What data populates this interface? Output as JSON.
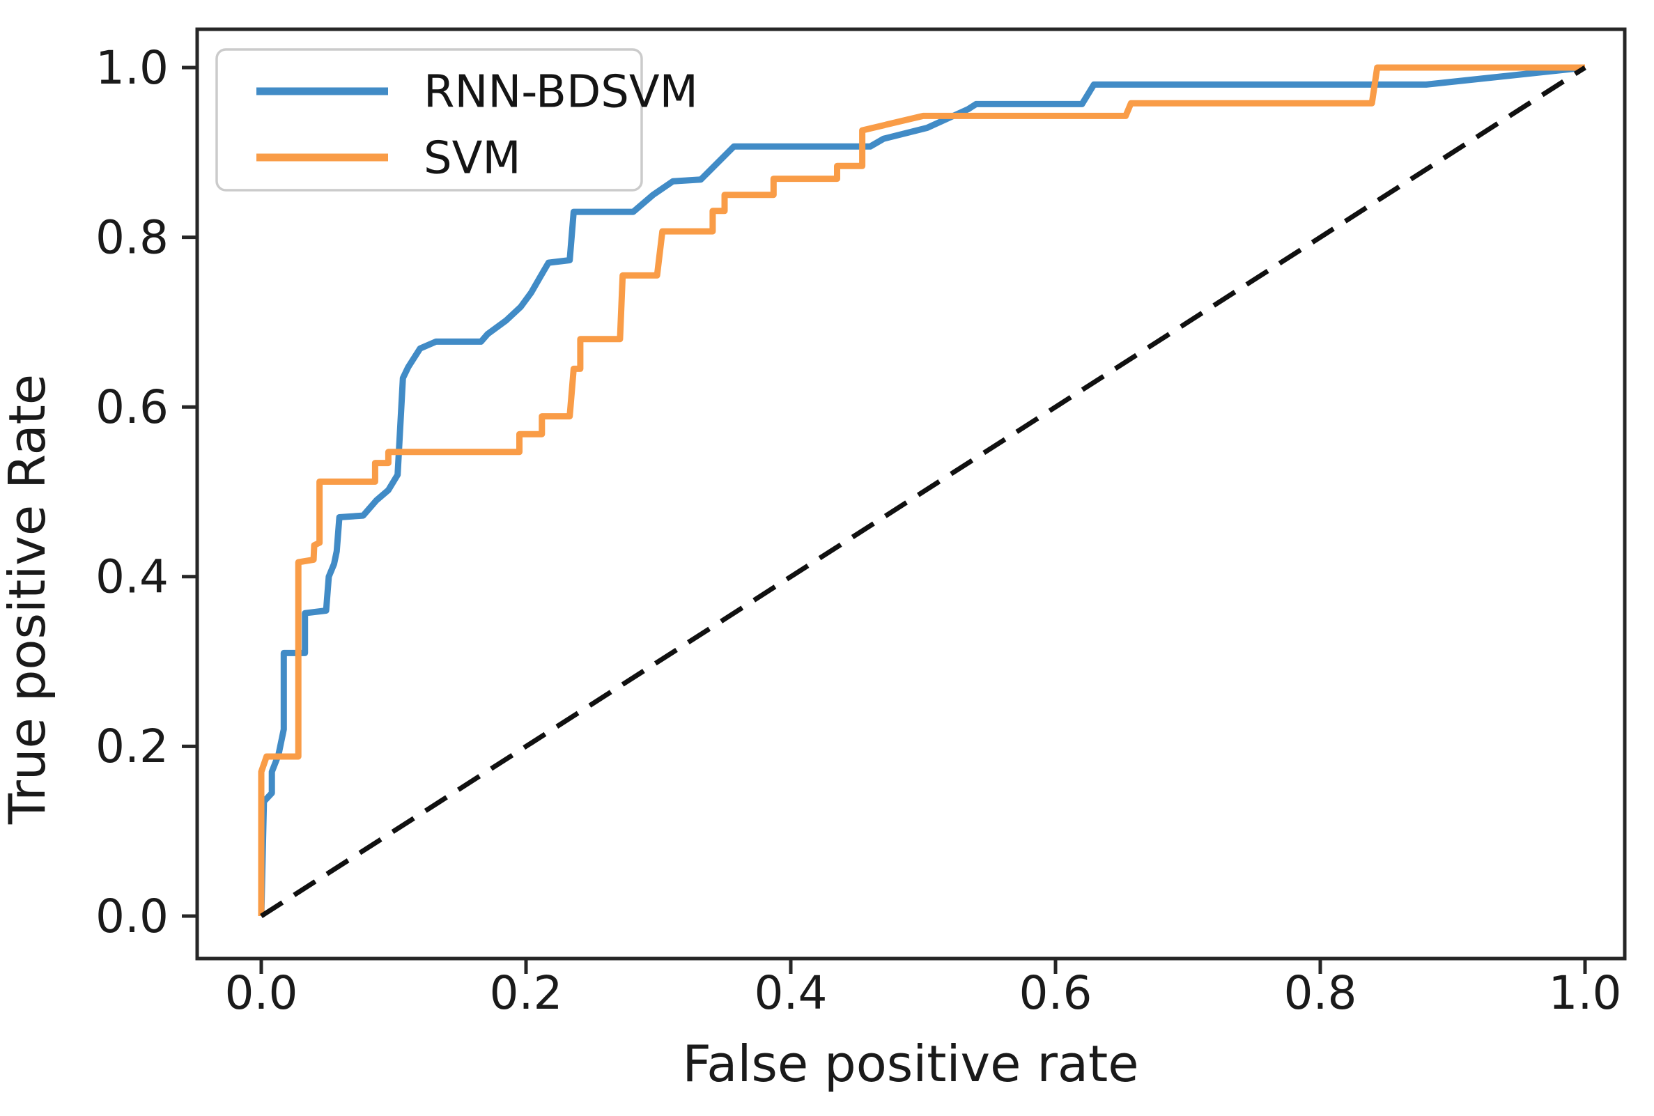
{
  "figure": {
    "background": "#ffffff"
  },
  "legend": {
    "items": [
      {
        "label": "RNN-BDSVM",
        "color": "#418bc6"
      },
      {
        "label": "SVM",
        "color": "#f99c47"
      }
    ]
  },
  "axes": {
    "x_label": "False positive rate",
    "y_label": "True positive Rate",
    "x_ticks": [
      {
        "value": 0.0,
        "label": "0.0"
      },
      {
        "value": 0.2,
        "label": "0.2"
      },
      {
        "value": 0.4,
        "label": "0.4"
      },
      {
        "value": 0.6,
        "label": "0.6"
      },
      {
        "value": 0.8,
        "label": "0.8"
      },
      {
        "value": 1.0,
        "label": "1.0"
      }
    ],
    "y_ticks": [
      {
        "value": 0.0,
        "label": "0.0"
      },
      {
        "value": 0.2,
        "label": "0.2"
      },
      {
        "value": 0.4,
        "label": "0.4"
      },
      {
        "value": 0.6,
        "label": "0.6"
      },
      {
        "value": 0.8,
        "label": "0.8"
      },
      {
        "value": 1.0,
        "label": "1.0"
      }
    ]
  },
  "chart_data": {
    "type": "line",
    "title": "",
    "xlabel": "False positive rate",
    "ylabel": "True positive Rate",
    "xlim": [
      0,
      1
    ],
    "ylim": [
      0,
      1
    ],
    "grid": false,
    "legend_position": "upper left",
    "series": [
      {
        "name": "RNN-BDSVM",
        "color": "#418bc6",
        "style": "solid",
        "points": [
          [
            0,
            0
          ],
          [
            0.002,
            0.135
          ],
          [
            0.008,
            0.145
          ],
          [
            0.008,
            0.17
          ],
          [
            0.013,
            0.19
          ],
          [
            0.017,
            0.22
          ],
          [
            0.017,
            0.31
          ],
          [
            0.033,
            0.31
          ],
          [
            0.033,
            0.357
          ],
          [
            0.049,
            0.36
          ],
          [
            0.051,
            0.4
          ],
          [
            0.055,
            0.415
          ],
          [
            0.057,
            0.43
          ],
          [
            0.059,
            0.47
          ],
          [
            0.077,
            0.472
          ],
          [
            0.087,
            0.49
          ],
          [
            0.096,
            0.502
          ],
          [
            0.103,
            0.52
          ],
          [
            0.107,
            0.634
          ],
          [
            0.111,
            0.647
          ],
          [
            0.12,
            0.669
          ],
          [
            0.132,
            0.677
          ],
          [
            0.166,
            0.677
          ],
          [
            0.171,
            0.686
          ],
          [
            0.185,
            0.702
          ],
          [
            0.196,
            0.718
          ],
          [
            0.204,
            0.735
          ],
          [
            0.211,
            0.754
          ],
          [
            0.217,
            0.77
          ],
          [
            0.233,
            0.773
          ],
          [
            0.236,
            0.83
          ],
          [
            0.281,
            0.83
          ],
          [
            0.296,
            0.85
          ],
          [
            0.311,
            0.866
          ],
          [
            0.332,
            0.868
          ],
          [
            0.357,
            0.907
          ],
          [
            0.46,
            0.907
          ],
          [
            0.47,
            0.916
          ],
          [
            0.503,
            0.929
          ],
          [
            0.534,
            0.951
          ],
          [
            0.54,
            0.957
          ],
          [
            0.62,
            0.957
          ],
          [
            0.629,
            0.98
          ],
          [
            0.88,
            0.98
          ],
          [
            0.946,
            0.991
          ],
          [
            1.0,
            1.0
          ]
        ]
      },
      {
        "name": "SVM",
        "color": "#f99c47",
        "style": "solid",
        "points": [
          [
            0,
            0
          ],
          [
            0,
            0.17
          ],
          [
            0.004,
            0.188
          ],
          [
            0.028,
            0.188
          ],
          [
            0.028,
            0.417
          ],
          [
            0.0395,
            0.42
          ],
          [
            0.04,
            0.437
          ],
          [
            0.044,
            0.44
          ],
          [
            0.044,
            0.512
          ],
          [
            0.086,
            0.512
          ],
          [
            0.086,
            0.534
          ],
          [
            0.096,
            0.534
          ],
          [
            0.096,
            0.547
          ],
          [
            0.195,
            0.547
          ],
          [
            0.195,
            0.568
          ],
          [
            0.212,
            0.568
          ],
          [
            0.212,
            0.589
          ],
          [
            0.233,
            0.589
          ],
          [
            0.236,
            0.645
          ],
          [
            0.241,
            0.645
          ],
          [
            0.241,
            0.68
          ],
          [
            0.271,
            0.68
          ],
          [
            0.273,
            0.755
          ],
          [
            0.299,
            0.755
          ],
          [
            0.303,
            0.807
          ],
          [
            0.341,
            0.807
          ],
          [
            0.341,
            0.831
          ],
          [
            0.35,
            0.831
          ],
          [
            0.35,
            0.85
          ],
          [
            0.387,
            0.85
          ],
          [
            0.387,
            0.869
          ],
          [
            0.435,
            0.869
          ],
          [
            0.435,
            0.884
          ],
          [
            0.454,
            0.884
          ],
          [
            0.454,
            0.926
          ],
          [
            0.5,
            0.943
          ],
          [
            0.653,
            0.943
          ],
          [
            0.657,
            0.958
          ],
          [
            0.839,
            0.958
          ],
          [
            0.843,
            1.0
          ],
          [
            1.0,
            1.0
          ]
        ]
      },
      {
        "name": "chance-diagonal",
        "color": "#101010",
        "style": "dashed",
        "points": [
          [
            0,
            0
          ],
          [
            1,
            1
          ]
        ]
      }
    ]
  }
}
